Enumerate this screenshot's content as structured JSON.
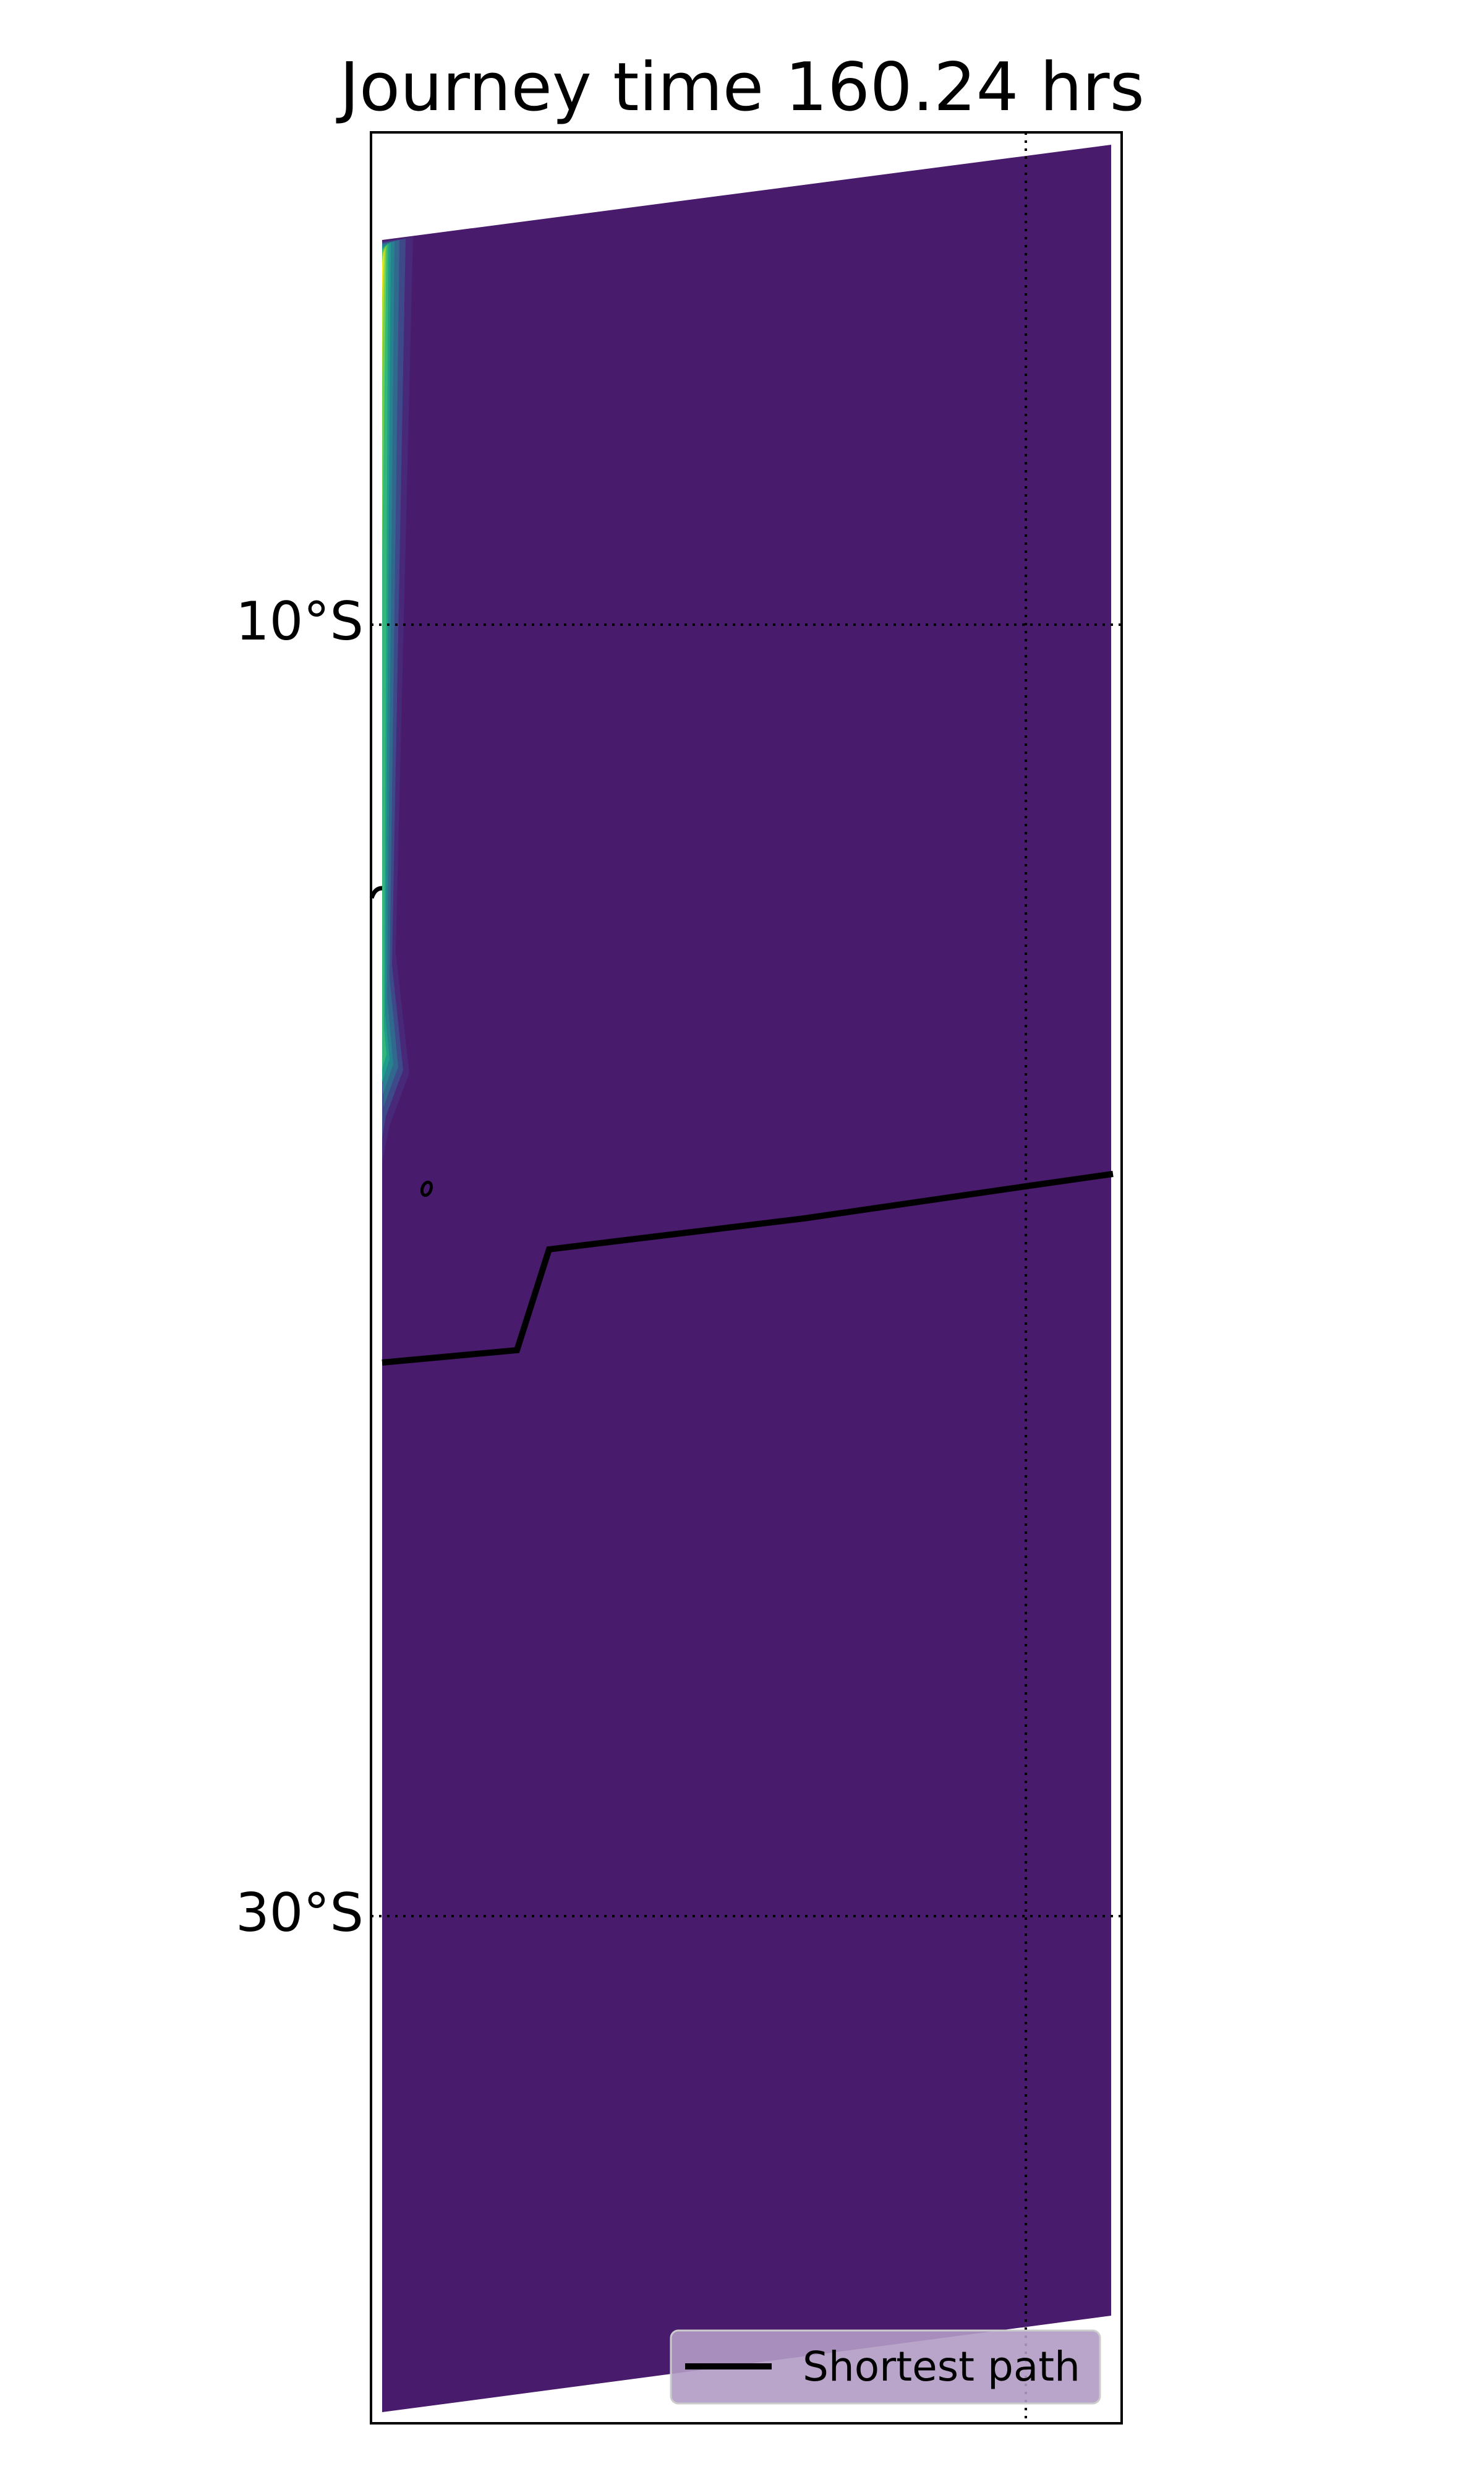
{
  "chart_data": {
    "type": "heatmap",
    "title": "Journey time 160.24 hrs",
    "xlabel": "",
    "ylabel": "",
    "projection": "map",
    "y_ticks": [
      {
        "label": "10°S",
        "value": -10
      },
      {
        "label": "30°S",
        "value": -30
      }
    ],
    "ylim": [
      -43,
      4
    ],
    "grid": true,
    "grid_style": "dotted",
    "field": {
      "colormap": "viridis",
      "dominant_color": "#481b6d",
      "edge_colors": [
        "#fde725",
        "#b5de2b",
        "#6ece58",
        "#35b779",
        "#1f9e89",
        "#26828e",
        "#31688e",
        "#3e4989",
        "#482878"
      ]
    },
    "series": [
      {
        "name": "Shortest path",
        "color": "#000000"
      }
    ],
    "legend": {
      "placement": "lower right",
      "entries": [
        "Shortest path"
      ]
    }
  }
}
